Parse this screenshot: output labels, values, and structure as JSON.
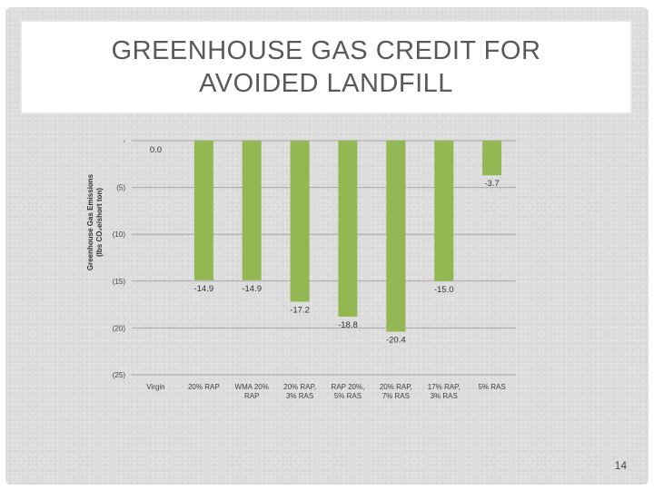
{
  "slide": {
    "title": "GREENHOUSE GAS CREDIT FOR AVOIDED LANDFILL",
    "page_number": "14"
  },
  "colors": {
    "bar": "#93b752",
    "gridline": "#a6a6a6",
    "text": "#404040"
  },
  "chart_data": {
    "type": "bar",
    "title": "",
    "xlabel": "",
    "ylabel": "Greenhouse Gas Emissions (lbs CO₂e/short ton)",
    "ylabel_lines": [
      "Greenhouse Gas Emissions",
      "(lbs CO₂e/short ton)"
    ],
    "ylim": [
      -25,
      0
    ],
    "yticks": [
      0,
      -5,
      -10,
      -15,
      -20,
      -25
    ],
    "ytick_labels": [
      "-",
      "(5)",
      "(10)",
      "(15)",
      "(20)",
      "(25)"
    ],
    "grid": true,
    "legend": "none",
    "categories": [
      [
        "Virgin"
      ],
      [
        "20% RAP"
      ],
      [
        "WMA 20%",
        "RAP"
      ],
      [
        "20% RAP,",
        "3% RAS"
      ],
      [
        "RAP 20%,",
        "5% RAS"
      ],
      [
        "20% RAP,",
        "7% RAS"
      ],
      [
        "17% RAP,",
        "3% RAS"
      ],
      [
        "5% RAS"
      ]
    ],
    "values": [
      0.0,
      -14.9,
      -14.9,
      -17.2,
      -18.8,
      -20.4,
      -15.0,
      -3.7
    ],
    "data_labels": [
      "0.0",
      "-14.9",
      "-14.9",
      "-17.2",
      "-18.8",
      "-20.4",
      "-15.0",
      "-3.7"
    ]
  }
}
